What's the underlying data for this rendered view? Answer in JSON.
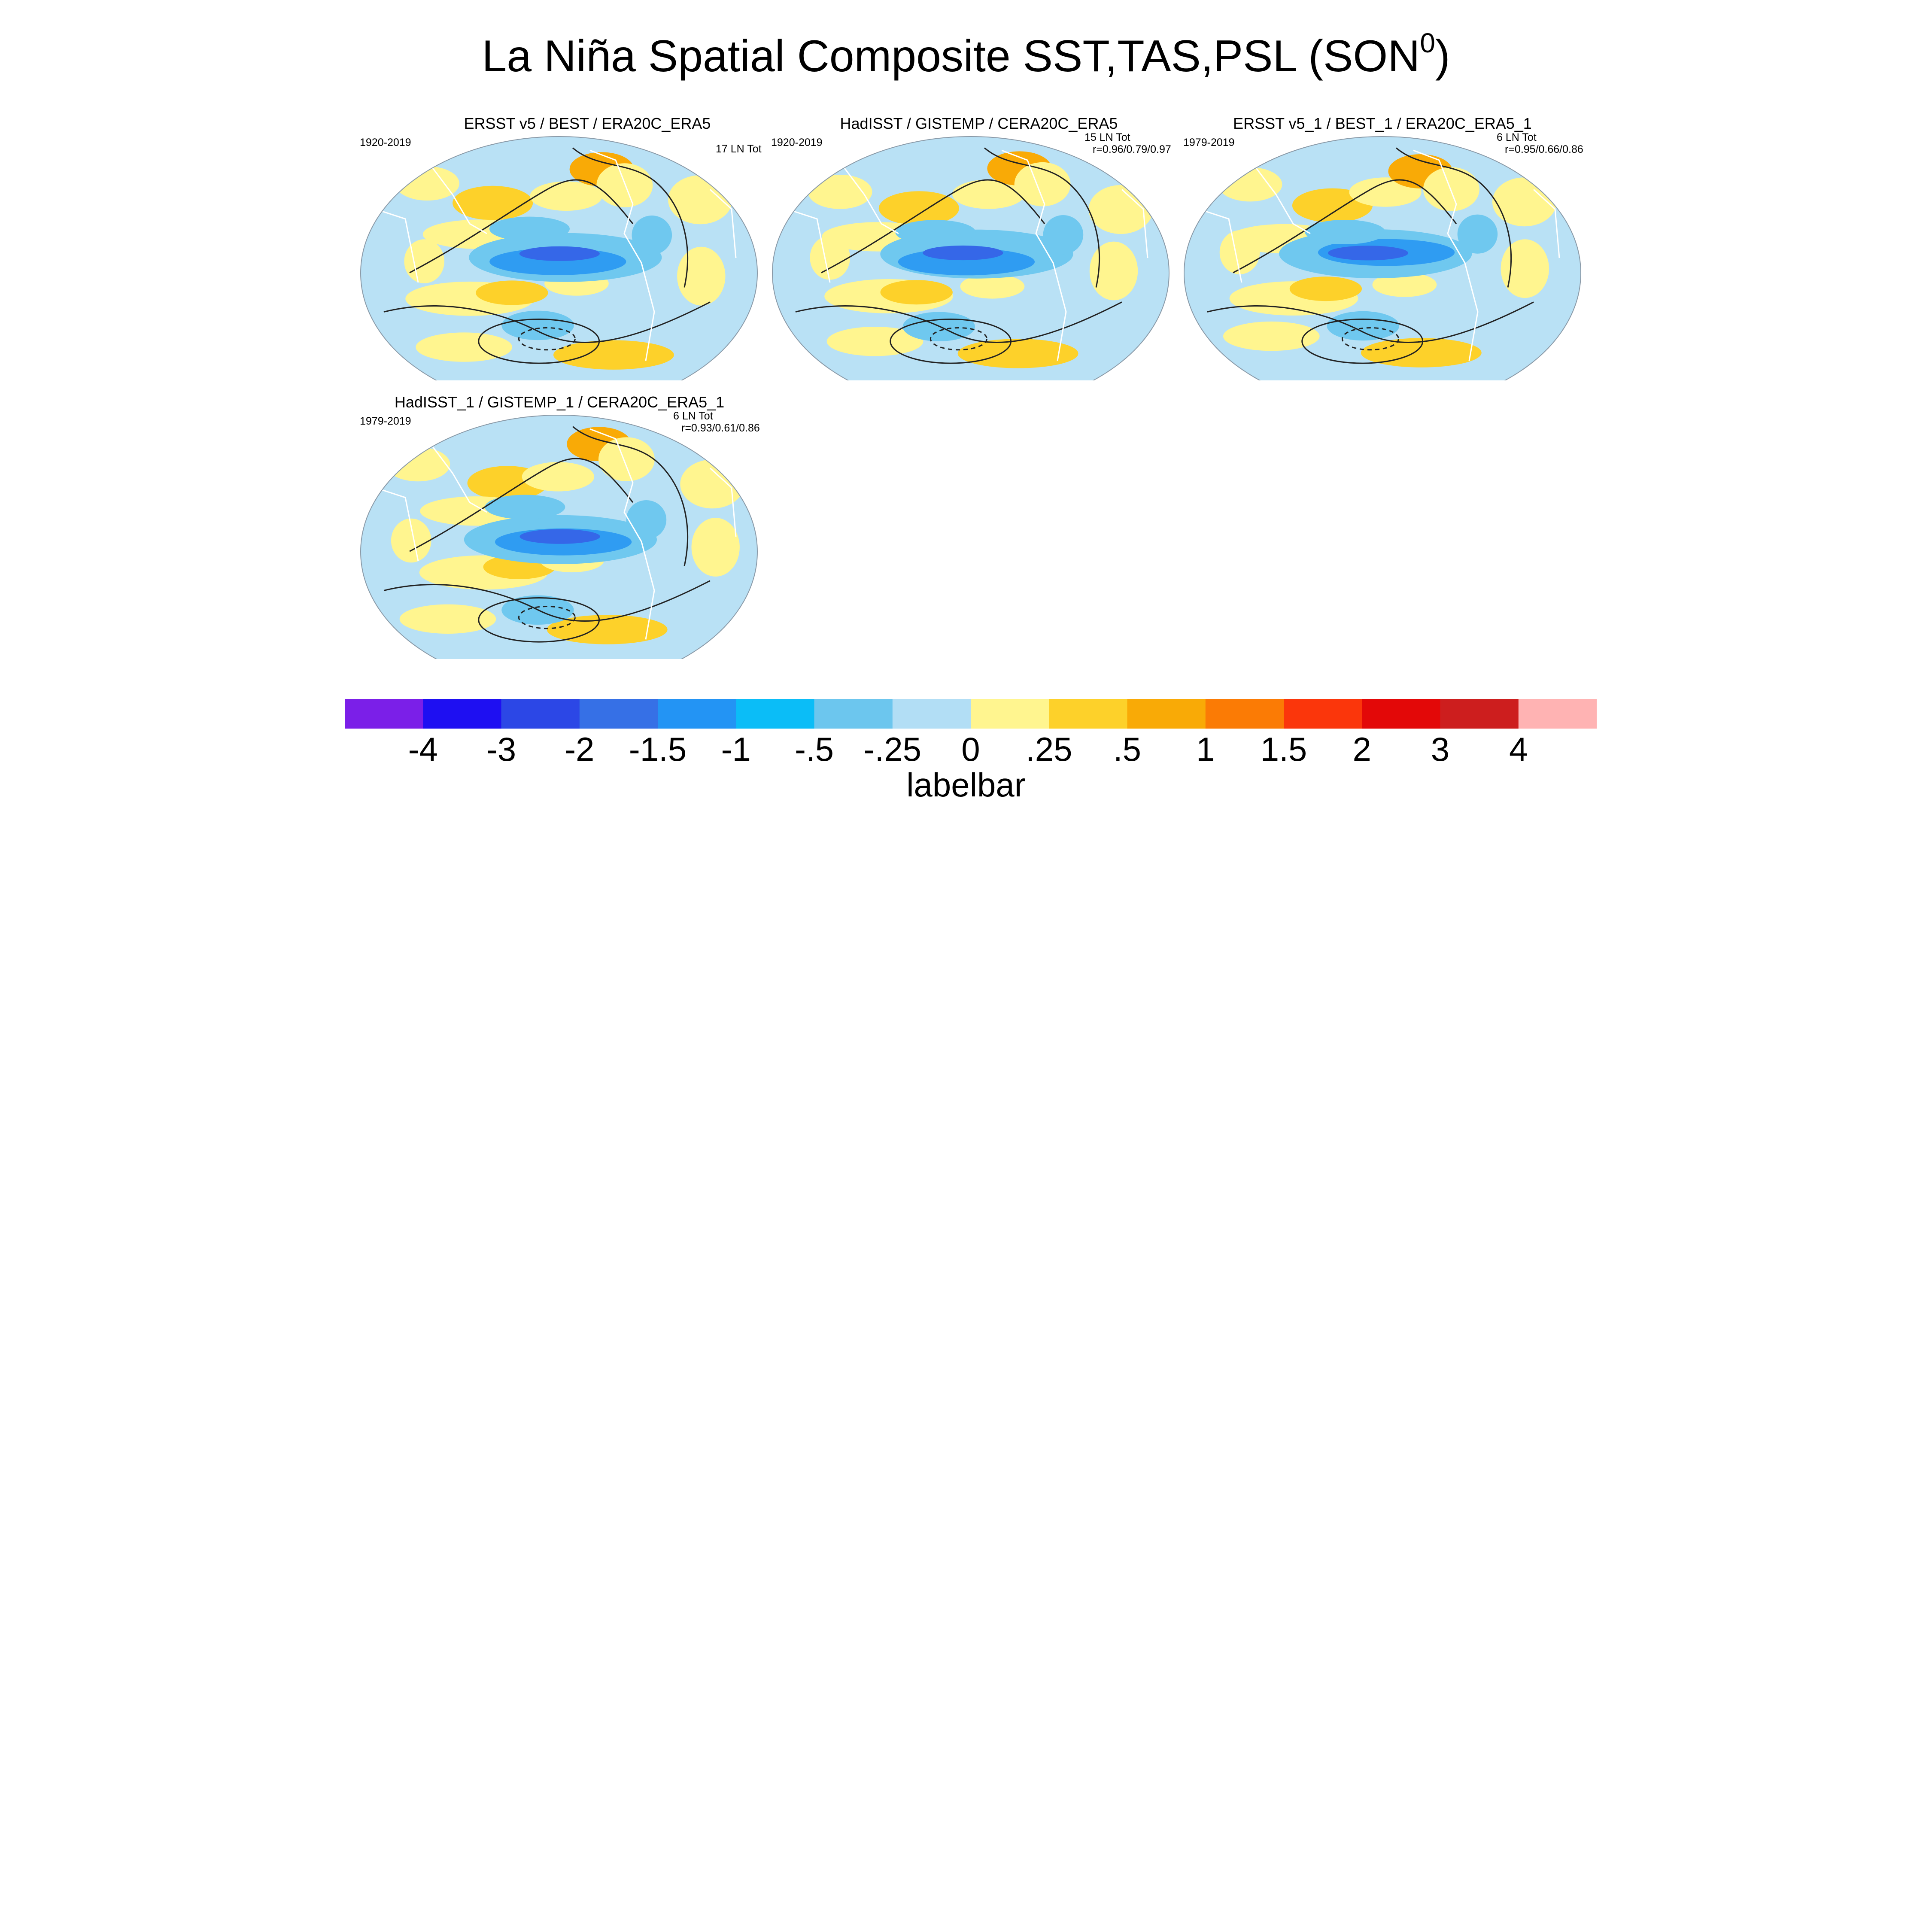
{
  "title": {
    "main": "La Niña Spatial Composite SST,TAS,PSL (SON",
    "sup": "0",
    "close": ")"
  },
  "panels": [
    {
      "id": "p1",
      "title": "ERSST v5 / BEST / ERA20C_ERA5",
      "period": "1920-2019",
      "count": "17 LN Tot",
      "corr": ""
    },
    {
      "id": "p2",
      "title": "HadISST / GISTEMP / CERA20C_ERA5",
      "period": "1920-2019",
      "count": "15 LN Tot",
      "corr": "r=0.96/0.79/0.97"
    },
    {
      "id": "p3",
      "title": "ERSST v5_1 / BEST_1 / ERA20C_ERA5_1",
      "period": "1979-2019",
      "count": "6 LN Tot",
      "corr": "r=0.95/0.66/0.86"
    },
    {
      "id": "p4",
      "title": "HadISST_1 / GISTEMP_1 / CERA20C_ERA5_1",
      "period": "1979-2019",
      "count": "6 LN Tot",
      "corr": "r=0.93/0.61/0.86"
    }
  ],
  "labelbar": {
    "title": "labelbar",
    "colors": [
      "#7b1fe8",
      "#1e0ff2",
      "#2c47e6",
      "#3670e6",
      "#2394f4",
      "#0bbdf7",
      "#6cc6ee",
      "#b2def5",
      "#fff58f",
      "#fdd12a",
      "#f9aa06",
      "#fb7b05",
      "#fb360b",
      "#e30808",
      "#cd1e1e",
      "#ffb3b3"
    ],
    "ticks": [
      "-4",
      "-3",
      "-2",
      "-1.5",
      "-1",
      "-.5",
      "-.25",
      "0",
      ".25",
      ".5",
      "1",
      "1.5",
      "2",
      "3",
      "4"
    ]
  },
  "palette": {
    "background": "#b9e1f5",
    "cool": "#6fc8ef",
    "cooler": "#2f9cf2",
    "coldest": "#3567e8",
    "warm": "#fff58f",
    "warmer": "#fdd12a",
    "hot": "#f9aa06",
    "hotter": "#fb7b05"
  }
}
